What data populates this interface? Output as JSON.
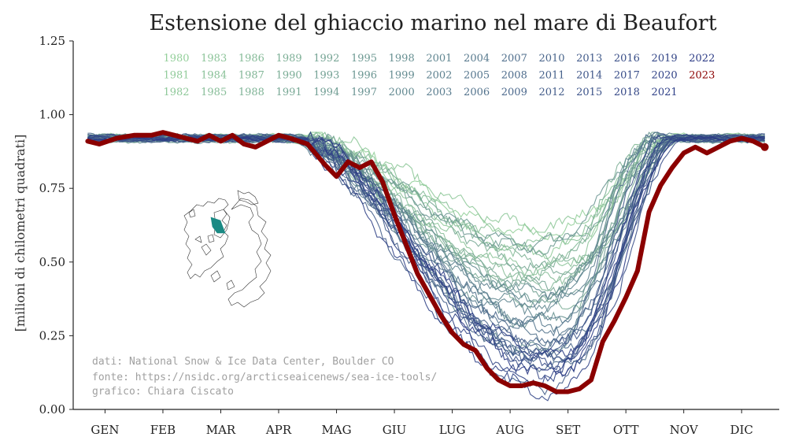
{
  "chart_data": {
    "type": "line",
    "title": "Estensione del ghiaccio marino nel mare di Beaufort",
    "ylabel": "[milioni di chilometri quadrati]",
    "xlabel": "",
    "ylim": [
      0,
      1.25
    ],
    "yticks": [
      "0.00",
      "0.25",
      "0.50",
      "0.75",
      "1.00",
      "1.25"
    ],
    "ytick_values": [
      0,
      0.25,
      0.5,
      0.75,
      1.0,
      1.25
    ],
    "months": [
      "GEN",
      "FEB",
      "MAR",
      "APR",
      "MAG",
      "GIU",
      "LUG",
      "AUG",
      "SET",
      "OTT",
      "NOV",
      "DIC"
    ],
    "xlim_months": [
      0.45,
      12.65
    ],
    "legend_years": [
      "1980",
      "1981",
      "1982",
      "1983",
      "1984",
      "1985",
      "1986",
      "1987",
      "1988",
      "1989",
      "1990",
      "1991",
      "1992",
      "1993",
      "1994",
      "1995",
      "1996",
      "1997",
      "1998",
      "1999",
      "2000",
      "2001",
      "2002",
      "2003",
      "2004",
      "2005",
      "2006",
      "2007",
      "2008",
      "2009",
      "2010",
      "2011",
      "2012",
      "2013",
      "2014",
      "2015",
      "2016",
      "2017",
      "2018",
      "2019",
      "2020",
      "2021",
      "2022",
      "2023"
    ],
    "highlight_year": "2023",
    "highlight_color": "#8b0000",
    "palette_start": "#93cf9a",
    "palette_end": "#2b3a85",
    "highlight_series": {
      "name": "2023",
      "x": [
        0.7,
        0.9,
        1.2,
        1.5,
        1.8,
        2.0,
        2.2,
        2.4,
        2.6,
        2.8,
        3.0,
        3.2,
        3.4,
        3.6,
        3.8,
        4.0,
        4.2,
        4.5,
        4.8,
        5.0,
        5.2,
        5.4,
        5.6,
        5.8,
        6.0,
        6.2,
        6.4,
        6.6,
        6.8,
        7.0,
        7.2,
        7.4,
        7.6,
        7.8,
        8.0,
        8.2,
        8.4,
        8.6,
        8.8,
        9.0,
        9.2,
        9.4,
        9.6,
        9.8,
        10.0,
        10.2,
        10.4,
        10.6,
        10.8,
        11.0,
        11.2,
        11.4,
        11.6,
        11.8,
        12.0,
        12.2,
        12.4
      ],
      "values": [
        0.91,
        0.9,
        0.92,
        0.93,
        0.93,
        0.94,
        0.93,
        0.92,
        0.91,
        0.93,
        0.91,
        0.93,
        0.9,
        0.89,
        0.91,
        0.93,
        0.92,
        0.9,
        0.83,
        0.79,
        0.84,
        0.82,
        0.84,
        0.77,
        0.66,
        0.56,
        0.46,
        0.39,
        0.32,
        0.26,
        0.22,
        0.2,
        0.14,
        0.1,
        0.08,
        0.08,
        0.09,
        0.08,
        0.06,
        0.06,
        0.07,
        0.1,
        0.23,
        0.3,
        0.38,
        0.47,
        0.67,
        0.76,
        0.82,
        0.87,
        0.89,
        0.87,
        0.89,
        0.91,
        0.92,
        0.91,
        0.89
      ]
    },
    "summer_min_by_year": [
      0.6,
      0.54,
      0.62,
      0.48,
      0.57,
      0.45,
      0.52,
      0.43,
      0.5,
      0.46,
      0.35,
      0.47,
      0.42,
      0.4,
      0.55,
      0.38,
      0.56,
      0.3,
      0.2,
      0.4,
      0.36,
      0.34,
      0.37,
      0.3,
      0.28,
      0.27,
      0.24,
      0.15,
      0.19,
      0.22,
      0.18,
      0.2,
      0.08,
      0.2,
      0.21,
      0.17,
      0.14,
      0.16,
      0.12,
      0.05,
      0.1,
      0.19,
      0.13
    ]
  },
  "inset_map": {
    "icon": "arctic-map-icon",
    "region_color": "#1a8a84"
  },
  "credits": {
    "data": "dati: National Snow & Ice Data Center, Boulder CO",
    "source": "fonte: https://nsidc.org/arcticseaicenews/sea-ice-tools/",
    "author": "grafico: Chiara Ciscato"
  }
}
